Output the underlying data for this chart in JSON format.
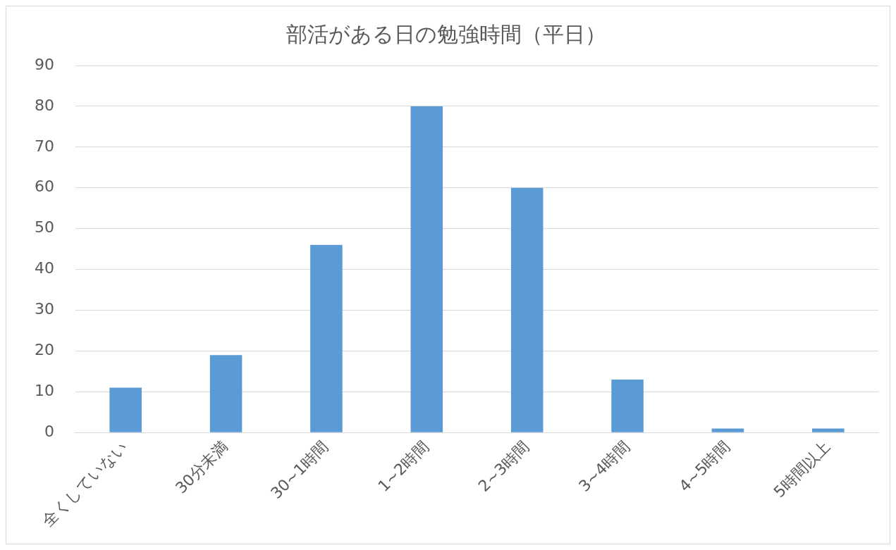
{
  "chart_data": {
    "type": "bar",
    "title": "部活がある日の勉強時間（平日）",
    "categories": [
      "全くしていない",
      "30分未満",
      "30~1時間",
      "1~2時間",
      "2~3時間",
      "3~4時間",
      "4~5時間",
      "5時間以上"
    ],
    "values": [
      11,
      19,
      46,
      80,
      60,
      13,
      1,
      1
    ],
    "color": "#5b9bd5",
    "ylim": [
      0,
      90
    ],
    "yticks": [
      0,
      10,
      20,
      30,
      40,
      50,
      60,
      70,
      80,
      90
    ],
    "grid": "y",
    "legend": false
  }
}
